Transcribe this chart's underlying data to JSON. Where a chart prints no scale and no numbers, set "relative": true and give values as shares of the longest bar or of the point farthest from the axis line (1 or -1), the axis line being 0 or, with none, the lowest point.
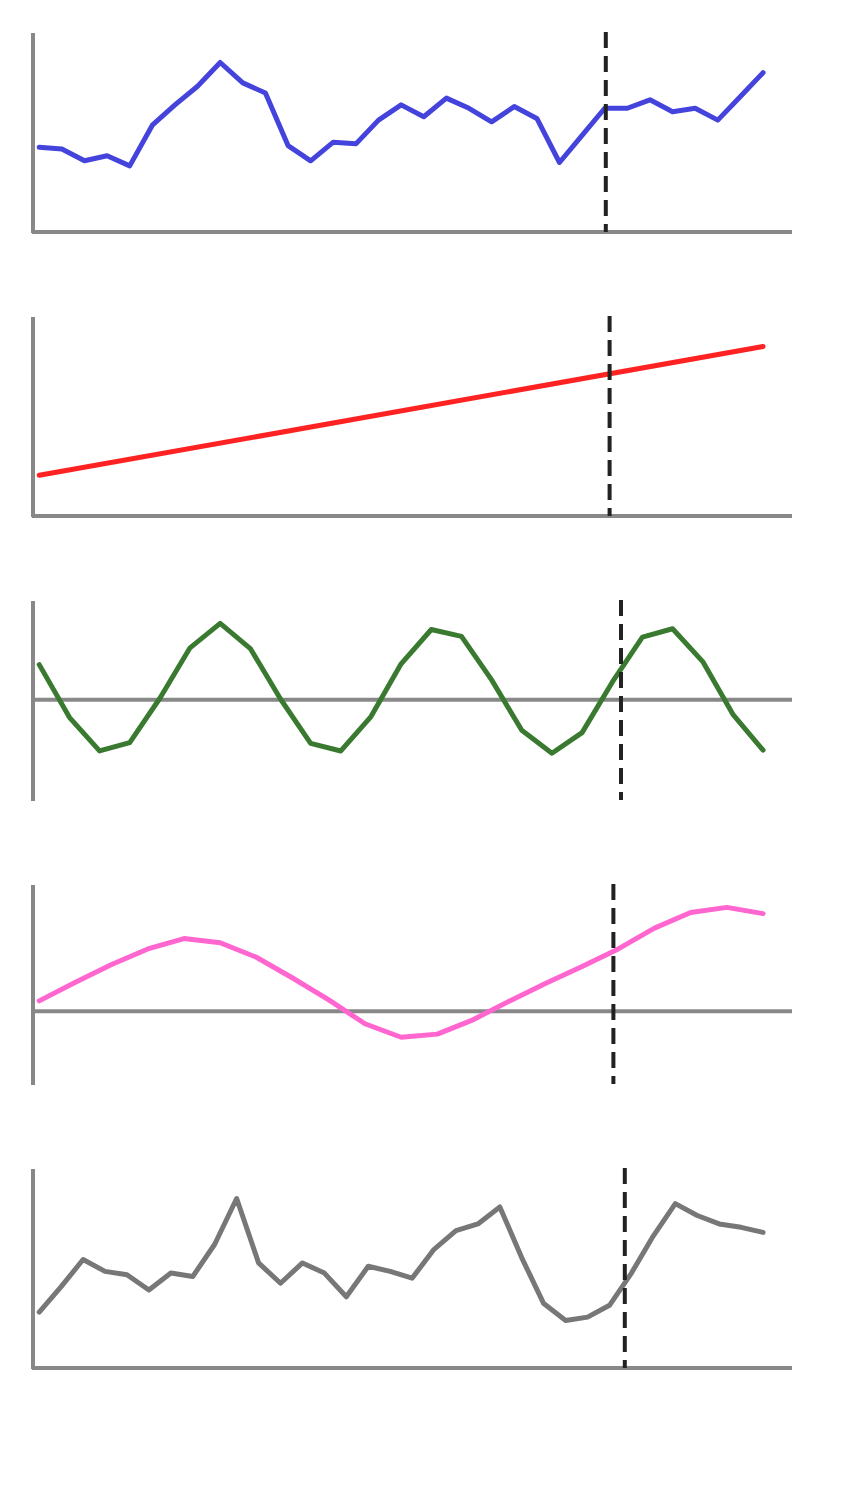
{
  "chart_data": [
    {
      "type": "line",
      "relative": true,
      "categories": [
        null,
        null,
        null,
        null,
        null,
        null,
        null,
        null,
        null,
        null,
        null,
        null,
        null,
        null,
        null,
        null,
        null,
        null,
        null,
        null,
        null,
        null,
        null,
        null,
        null,
        null,
        null,
        null,
        null,
        null,
        null,
        null,
        null
      ],
      "tick_labels": false,
      "grid": false,
      "legend": false,
      "marker": "none",
      "line_style": "solid",
      "series": [
        {
          "color": "#4444dd",
          "values": [
            0.5,
            0.49,
            0.42,
            0.45,
            0.39,
            0.63,
            0.75,
            0.86,
            1,
            0.88,
            0.82,
            0.51,
            0.42,
            0.53,
            0.52,
            0.66,
            0.75,
            0.68,
            0.79,
            0.73,
            0.65,
            0.74,
            0.67,
            0.41,
            0.57,
            0.73,
            0.73,
            0.78,
            0.71,
            0.73,
            0.66,
            0.8,
            0.94
          ]
        }
      ]
    },
    {
      "type": "line",
      "relative": true,
      "categories": [
        null,
        null
      ],
      "tick_labels": false,
      "grid": false,
      "legend": false,
      "marker": "none",
      "line_style": "solid",
      "series": [
        {
          "color": "#ff2222",
          "values": [
            0.24,
            1
          ]
        }
      ]
    },
    {
      "type": "line",
      "relative": true,
      "categories": [
        null,
        null,
        null,
        null,
        null,
        null,
        null,
        null,
        null,
        null,
        null,
        null,
        null,
        null,
        null,
        null,
        null,
        null,
        null,
        null,
        null,
        null,
        null,
        null,
        null
      ],
      "tick_labels": false,
      "grid": false,
      "legend": false,
      "marker": "none",
      "line_style": "solid",
      "series": [
        {
          "color": "#3a7a30",
          "values": [
            0.46,
            -0.23,
            -0.67,
            -0.56,
            0.02,
            0.68,
            1,
            0.67,
            0.01,
            -0.57,
            -0.67,
            -0.22,
            0.47,
            0.92,
            0.83,
            0.26,
            -0.4,
            -0.7,
            -0.43,
            0.23,
            0.82,
            0.93,
            0.5,
            -0.19,
            -0.66
          ]
        }
      ]
    },
    {
      "type": "line",
      "relative": true,
      "categories": [
        null,
        null,
        null,
        null,
        null,
        null,
        null,
        null,
        null,
        null,
        null,
        null,
        null,
        null,
        null,
        null,
        null,
        null,
        null,
        null,
        null
      ],
      "tick_labels": false,
      "grid": false,
      "legend": false,
      "marker": "none",
      "line_style": "solid",
      "series": [
        {
          "color": "#ff66d0",
          "values": [
            0.1,
            0.28,
            0.45,
            0.6,
            0.7,
            0.66,
            0.52,
            0.32,
            0.11,
            -0.12,
            -0.25,
            -0.22,
            -0.08,
            0.1,
            0.27,
            0.43,
            0.6,
            0.8,
            0.95,
            1,
            0.94
          ]
        }
      ]
    },
    {
      "type": "line",
      "relative": true,
      "categories": [
        null,
        null,
        null,
        null,
        null,
        null,
        null,
        null,
        null,
        null,
        null,
        null,
        null,
        null,
        null,
        null,
        null,
        null,
        null,
        null,
        null,
        null,
        null,
        null,
        null,
        null,
        null,
        null,
        null,
        null,
        null,
        null,
        null,
        null
      ],
      "tick_labels": false,
      "grid": false,
      "legend": false,
      "marker": "none",
      "line_style": "solid",
      "series": [
        {
          "color": "#777777",
          "values": [
            0.33,
            0.48,
            0.64,
            0.57,
            0.55,
            0.46,
            0.56,
            0.54,
            0.73,
            1,
            0.62,
            0.5,
            0.62,
            0.56,
            0.42,
            0.6,
            0.57,
            0.53,
            0.7,
            0.81,
            0.85,
            0.95,
            0.65,
            0.38,
            0.28,
            0.3,
            0.37,
            0.56,
            0.78,
            0.97,
            0.9,
            0.85,
            0.83,
            0.8
          ]
        }
      ]
    }
  ]
}
